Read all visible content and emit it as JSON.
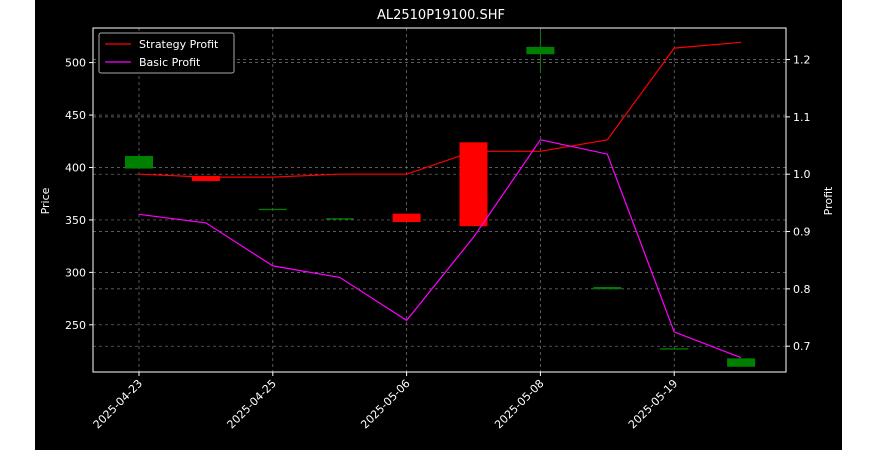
{
  "chart_data": {
    "type": "candlestick-line-combo",
    "title": "AL2510P19100.SHF",
    "ylabel_left": "Price",
    "ylabel_right": "Profit",
    "ylim_left": [
      205,
      533
    ],
    "ylim_right": [
      0.655,
      1.255
    ],
    "left_ticks": [
      "250",
      "300",
      "350",
      "400",
      "450",
      "500"
    ],
    "right_ticks": [
      "0.7",
      "0.8",
      "0.9",
      "1.0",
      "1.1",
      "1.2"
    ],
    "x_ticks": [
      "2025-04-23",
      "2025-04-25",
      "2025-05-06",
      "2025-05-08",
      "2025-05-19"
    ],
    "grid": true,
    "legend_position": "upper left",
    "up_color": "#008000",
    "down_color": "#ff0000",
    "candles": [
      {
        "open": 399,
        "close": 411,
        "high": 411,
        "low": 399
      },
      {
        "open": 392,
        "close": 387,
        "high": 392,
        "low": 387
      },
      {
        "open": 360,
        "close": 360,
        "high": 360,
        "low": 360
      },
      {
        "open": 351,
        "close": 351,
        "high": 351,
        "low": 351
      },
      {
        "open": 356,
        "close": 348,
        "high": 356,
        "low": 348
      },
      {
        "open": 424,
        "close": 344,
        "high": 424,
        "low": 344
      },
      {
        "open": 508,
        "close": 515,
        "high": 530,
        "low": 490
      },
      {
        "open": 284,
        "close": 286,
        "high": 286,
        "low": 284
      },
      {
        "open": 227,
        "close": 227,
        "high": 227,
        "low": 227
      },
      {
        "open": 210,
        "close": 218,
        "high": 218,
        "low": 210
      }
    ],
    "series": [
      {
        "name": "Strategy Profit",
        "color": "#ff0000",
        "values": [
          1.0,
          0.995,
          0.995,
          1.0,
          1.0,
          1.04,
          1.04,
          1.06,
          1.22,
          1.23
        ]
      },
      {
        "name": "Basic Profit",
        "color": "#ff00ff",
        "values": [
          0.93,
          0.915,
          0.84,
          0.82,
          0.745,
          0.89,
          1.06,
          1.035,
          0.725,
          0.68
        ]
      }
    ]
  }
}
